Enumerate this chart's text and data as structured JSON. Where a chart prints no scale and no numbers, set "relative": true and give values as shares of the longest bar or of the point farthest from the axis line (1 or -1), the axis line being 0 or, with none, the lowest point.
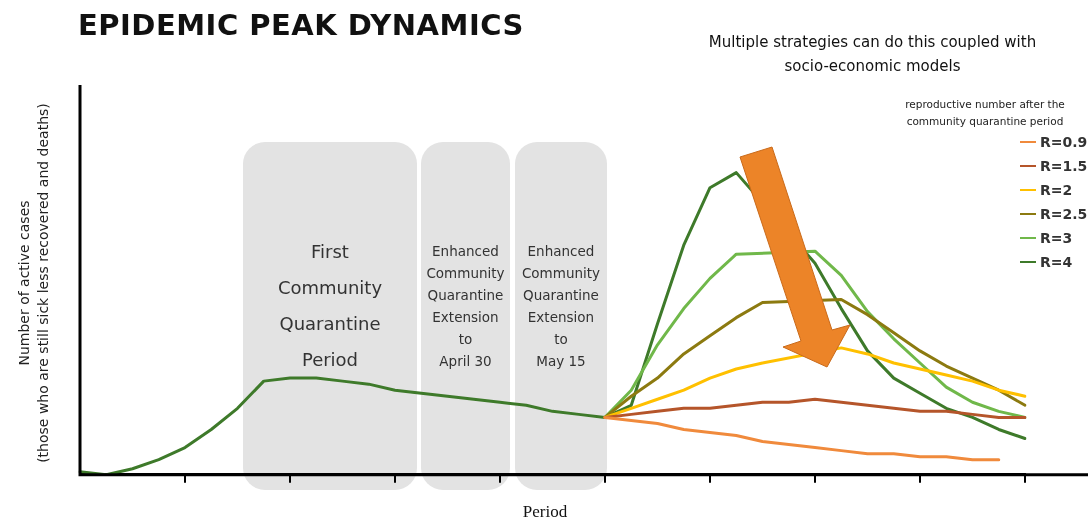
{
  "chart_data": {
    "type": "line",
    "title": "EPIDEMIC PEAK DYNAMICS",
    "subtitle": "Multiple strategies can do this coupled with socio-economic models",
    "xlabel": "Period",
    "ylabel": "Number of active cases (those who are still sick less recovered and deaths)",
    "legend_title": "reproductive number after the community quarantine period",
    "legend": "top right",
    "relative": true,
    "marker": "none",
    "line_style": "solid",
    "categories": [
      null,
      null,
      null,
      null,
      null,
      null,
      null,
      null,
      null,
      null,
      null,
      null,
      null,
      null,
      null,
      null,
      null,
      null,
      null,
      null,
      null,
      null,
      null,
      null,
      null,
      null,
      null,
      null,
      null,
      null,
      null,
      null,
      null,
      null,
      null,
      null,
      null
    ],
    "annotations": [
      "First\nCommunity\nQuarantine\nPeriod",
      "Enhanced\nCommunity\nQuarantine\nExtension\nto\nApril 30",
      "Enhanced\nCommunity\nQuarantine\nExtension\nto\nMay 15"
    ],
    "series": [
      {
        "name": "R=0.9",
        "color": "#f08a3c",
        "values": [
          null,
          null,
          null,
          null,
          null,
          null,
          null,
          null,
          null,
          null,
          null,
          null,
          null,
          null,
          null,
          null,
          null,
          null,
          null,
          null,
          0.19,
          0.18,
          0.17,
          0.15,
          0.14,
          0.13,
          0.11,
          0.1,
          0.09,
          0.08,
          0.07,
          0.07,
          0.06,
          0.06,
          0.05,
          0.05,
          null
        ]
      },
      {
        "name": "R=1.5",
        "color": "#b5552a",
        "values": [
          null,
          null,
          null,
          null,
          null,
          null,
          null,
          null,
          null,
          null,
          null,
          null,
          null,
          null,
          null,
          null,
          null,
          null,
          null,
          null,
          0.19,
          0.2,
          0.21,
          0.22,
          0.22,
          0.23,
          0.24,
          0.24,
          0.25,
          0.24,
          0.23,
          0.22,
          0.21,
          0.21,
          0.2,
          0.19,
          0.19
        ]
      },
      {
        "name": "R=2",
        "color": "#ffc000",
        "values": [
          null,
          null,
          null,
          null,
          null,
          null,
          null,
          null,
          null,
          null,
          null,
          null,
          null,
          null,
          null,
          null,
          null,
          null,
          null,
          null,
          0.19,
          0.22,
          0.25,
          0.28,
          0.32,
          0.35,
          0.37,
          null,
          null,
          0.42,
          0.4,
          0.37,
          0.35,
          0.33,
          0.31,
          0.28,
          0.26
        ]
      },
      {
        "name": "R=2.5",
        "color": "#8c7a10",
        "values": [
          null,
          null,
          null,
          null,
          null,
          null,
          null,
          null,
          null,
          null,
          null,
          null,
          null,
          null,
          null,
          null,
          null,
          null,
          null,
          null,
          0.19,
          0.26,
          0.32,
          0.4,
          0.46,
          0.52,
          0.57,
          null,
          null,
          0.58,
          0.53,
          0.47,
          0.41,
          0.36,
          0.32,
          0.28,
          0.23
        ]
      },
      {
        "name": "R=3",
        "color": "#70b84a",
        "values": [
          null,
          null,
          null,
          null,
          null,
          null,
          null,
          null,
          null,
          null,
          null,
          null,
          null,
          null,
          null,
          null,
          null,
          null,
          null,
          null,
          0.19,
          0.28,
          0.43,
          0.55,
          0.65,
          0.73,
          null,
          null,
          0.74,
          0.66,
          0.54,
          0.45,
          0.37,
          0.29,
          0.24,
          0.21,
          0.19
        ]
      },
      {
        "name": "R=4",
        "color": "#3e7a2a",
        "values": [
          0.01,
          0.0,
          0.02,
          0.05,
          0.09,
          0.15,
          0.22,
          0.31,
          0.32,
          0.32,
          0.31,
          0.3,
          0.28,
          0.27,
          0.26,
          0.25,
          0.24,
          0.23,
          0.21,
          0.2,
          0.19,
          0.23,
          0.5,
          0.76,
          0.95,
          1,
          null,
          null,
          0.7,
          0.55,
          0.41,
          0.32,
          0.27,
          0.22,
          0.19,
          0.15,
          0.12
        ]
      }
    ]
  }
}
